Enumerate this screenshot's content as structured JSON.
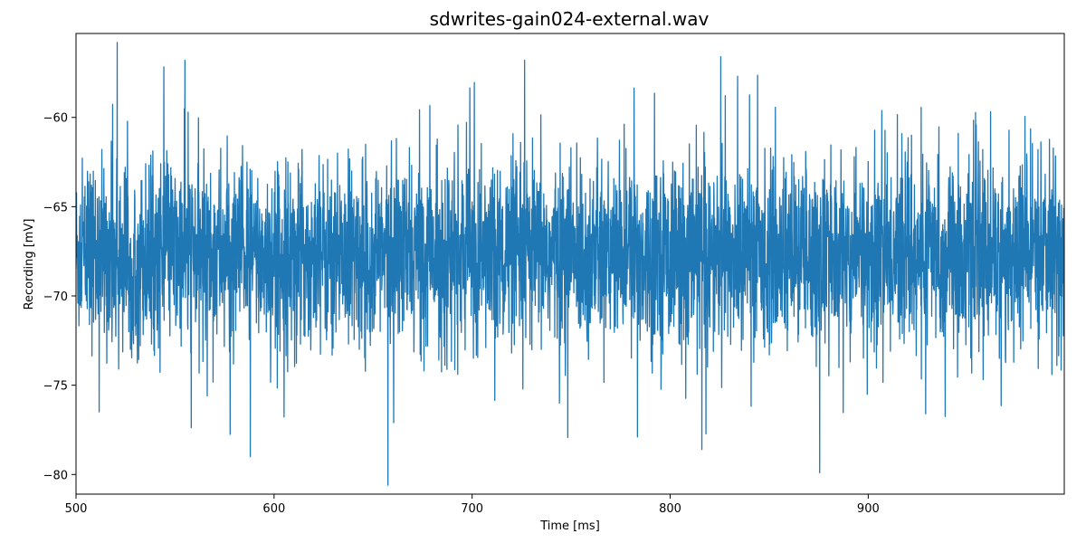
{
  "chart_data": {
    "type": "line",
    "title": "sdwrites-gain024-external.wav",
    "xlabel": "Time [ms]",
    "ylabel": "Recording [mV]",
    "xlim": [
      500,
      999
    ],
    "ylim": [
      -81.1,
      -55.3
    ],
    "x_ticks": [
      500,
      600,
      700,
      800,
      900
    ],
    "y_ticks": [
      -80,
      -75,
      -70,
      -65,
      -60
    ],
    "grid": false,
    "legend": "none",
    "line_color": "#1f77b4",
    "series": [
      {
        "signal_summary": {
          "x_start": 500,
          "x_end": 999,
          "mean": -67.7,
          "typical_low": -72.5,
          "typical_high": -62.5,
          "min": -80.6,
          "max": -55.8
        },
        "notable_points": [
          {
            "x": 520.8,
            "y": -55.8
          },
          {
            "x": 555.0,
            "y": -56.8
          },
          {
            "x": 726.5,
            "y": -56.8
          },
          {
            "x": 588.0,
            "y": -79.0
          },
          {
            "x": 657.5,
            "y": -80.6
          },
          {
            "x": 816.0,
            "y": -78.6
          },
          {
            "x": 875.5,
            "y": -79.9
          },
          {
            "x": 783.5,
            "y": -77.9
          }
        ]
      }
    ]
  }
}
